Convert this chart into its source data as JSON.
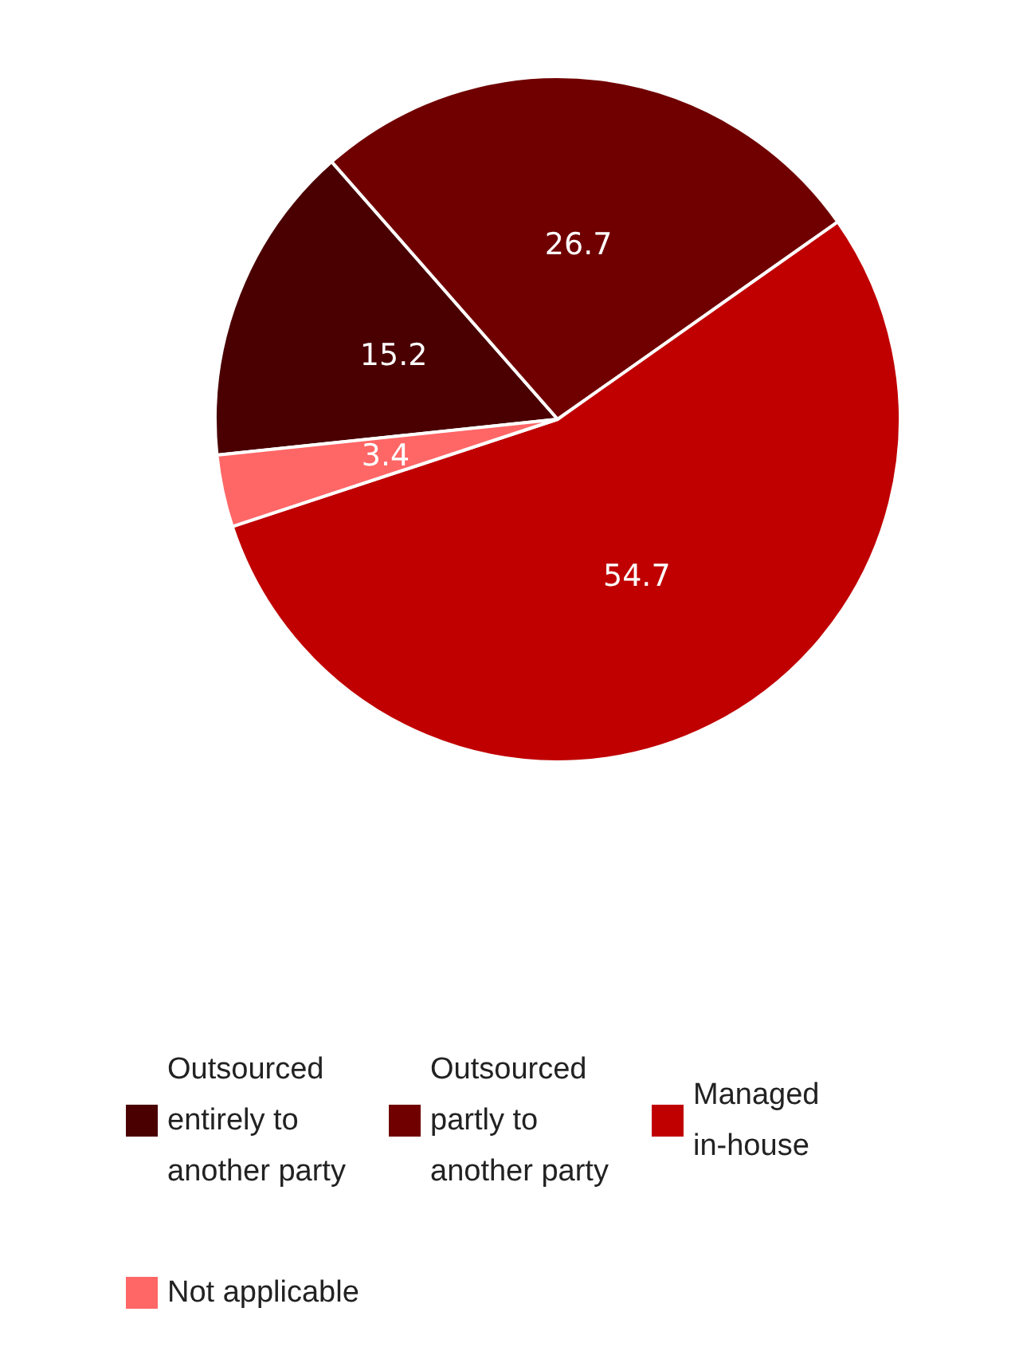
{
  "chart_data": {
    "type": "pie",
    "categories": [
      "Outsourced entirely to another party",
      "Outsourced partly to another party",
      "Managed in-house",
      "Not applicable"
    ],
    "values": [
      15.2,
      26.7,
      54.7,
      3.4
    ],
    "colors": [
      "#4a0000",
      "#700000",
      "#c00000",
      "#ff6666"
    ],
    "data_labels": true,
    "legend": "bottom"
  }
}
